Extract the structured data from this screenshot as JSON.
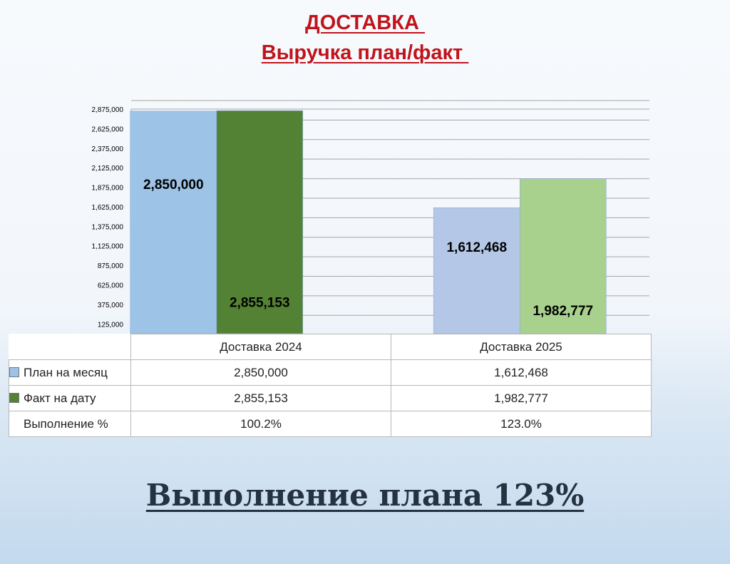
{
  "title_line1": "ДОСТАВКА ",
  "title_line2": "Выручка план/факт ",
  "chart_data": {
    "type": "bar",
    "categories": [
      "Доставка 2024",
      "Доставка 2025"
    ],
    "series": [
      {
        "name": "План на месяц",
        "values": [
          2850000,
          1612468
        ],
        "labels": [
          "2,850,000",
          "1,612,468"
        ],
        "colors": [
          "#9dc3e6",
          "#b4c7e7"
        ],
        "legend_color": "#9dc3e6"
      },
      {
        "name": "Факт на дату",
        "values": [
          2855153,
          1982777
        ],
        "labels": [
          "2,855,153",
          "1,982,777"
        ],
        "colors": [
          "#548235",
          "#a9d18e"
        ],
        "legend_color": "#548235"
      }
    ],
    "y_ticks": [
      125000,
      375000,
      625000,
      875000,
      1125000,
      1375000,
      1625000,
      1875000,
      2125000,
      2375000,
      2625000,
      2875000
    ],
    "y_tick_labels": [
      "125,000",
      "375,000",
      "625,000",
      "875,000",
      "1,125,000",
      "1,375,000",
      "1,625,000",
      "1,875,000",
      "2,125,000",
      "2,375,000",
      "2,625,000",
      "2,875,000"
    ],
    "ylim": [
      0,
      2875000
    ],
    "grid": true
  },
  "table": {
    "headers": [
      "Доставка 2024",
      "Доставка 2025"
    ],
    "rows": [
      {
        "label": "План на месяц",
        "values": [
          "2,850,000",
          "1,612,468"
        ],
        "swatch": "#9dc3e6"
      },
      {
        "label": "Факт на дату",
        "values": [
          "2,855,153",
          "1,982,777"
        ],
        "swatch": "#548235"
      },
      {
        "label": "Выполнение %",
        "values": [
          "100.2%",
          "123.0%"
        ]
      }
    ]
  },
  "footer": "Выполнение плана 123%"
}
